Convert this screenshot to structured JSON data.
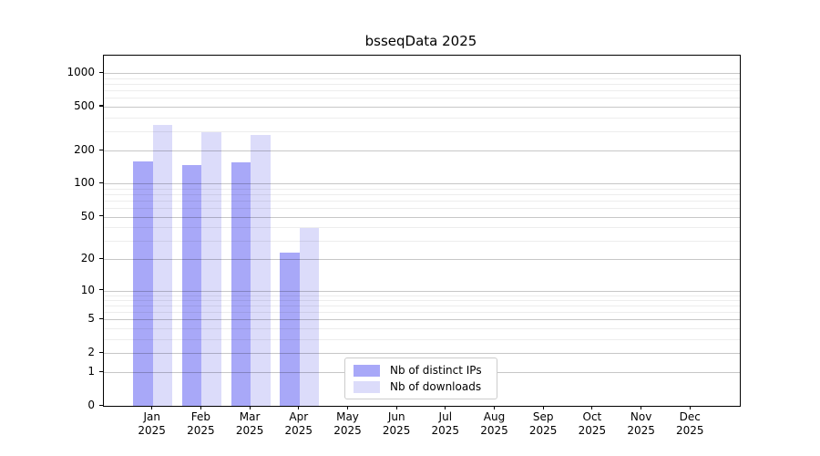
{
  "title": "bsseqData 2025",
  "chart_data": {
    "type": "bar",
    "title": "bsseqData 2025",
    "categories": [
      {
        "month": "Jan",
        "year": "2025"
      },
      {
        "month": "Feb",
        "year": "2025"
      },
      {
        "month": "Mar",
        "year": "2025"
      },
      {
        "month": "Apr",
        "year": "2025"
      },
      {
        "month": "May",
        "year": "2025"
      },
      {
        "month": "Jun",
        "year": "2025"
      },
      {
        "month": "Jul",
        "year": "2025"
      },
      {
        "month": "Aug",
        "year": "2025"
      },
      {
        "month": "Sep",
        "year": "2025"
      },
      {
        "month": "Oct",
        "year": "2025"
      },
      {
        "month": "Nov",
        "year": "2025"
      },
      {
        "month": "Dec",
        "year": "2025"
      }
    ],
    "series": [
      {
        "name": "Nb of distinct IPs",
        "color": "#a8a8f8",
        "values": [
          160,
          148,
          156,
          23,
          null,
          null,
          null,
          null,
          null,
          null,
          null,
          null
        ]
      },
      {
        "name": "Nb of downloads",
        "color": "#dcdcfa",
        "values": [
          345,
          292,
          277,
          39,
          null,
          null,
          null,
          null,
          null,
          null,
          null,
          null
        ]
      }
    ],
    "y_scale": "log10(1+x)",
    "y_major_ticks": [
      0,
      1,
      2,
      5,
      10,
      20,
      50,
      100,
      200,
      500,
      1000
    ],
    "y_minor_gridlines": [
      3,
      4,
      6,
      7,
      8,
      9,
      30,
      40,
      60,
      70,
      80,
      90,
      300,
      400,
      600,
      700,
      800,
      900
    ],
    "ylim": [
      0,
      1450
    ],
    "xlabel": "",
    "ylabel": "",
    "grid": "horizontal",
    "legend_position": "bottom-center"
  }
}
